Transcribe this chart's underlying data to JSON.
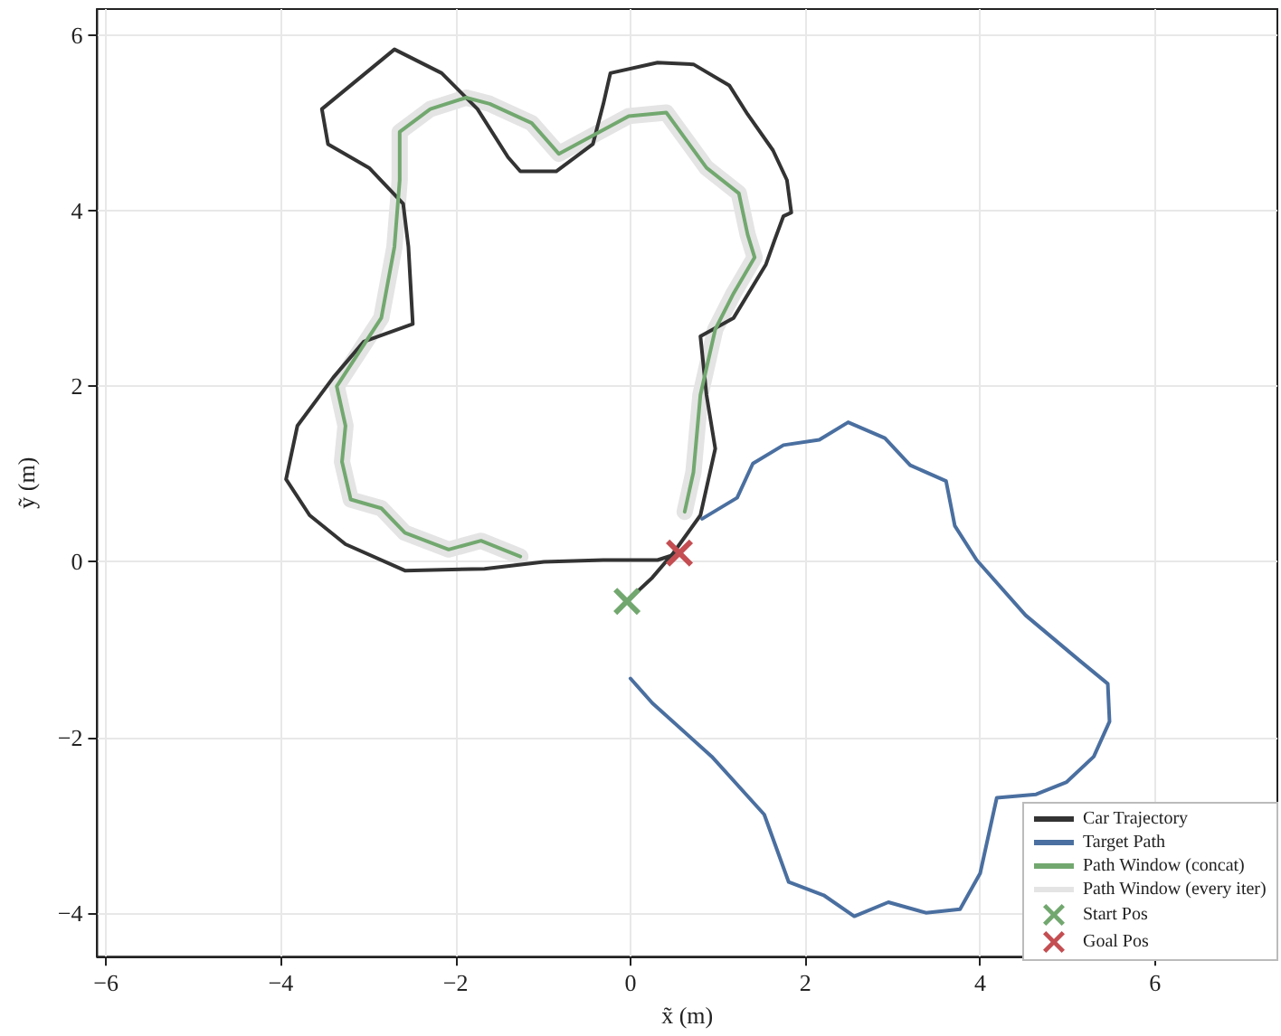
{
  "chart_data": {
    "type": "line",
    "xlabel": "x̃ (m)",
    "ylabel": "ỹ (m)",
    "xlim": [
      -6.1,
      7.4
    ],
    "xticks": [
      -6,
      -4,
      -2,
      0,
      2,
      4,
      6
    ],
    "ylim": [
      -4.5,
      6.3
    ],
    "yticks": [
      -4,
      -2,
      0,
      2,
      4,
      6
    ],
    "grid": true,
    "legend": "bottom right",
    "marker": "none",
    "line_style": "solid",
    "series": [
      {
        "name": "Car Trajectory",
        "color": "#333333",
        "x": [
          -0.04,
          0.25,
          0.49,
          0.8,
          0.97,
          0.87,
          0.8,
          1.18,
          1.55,
          1.65,
          1.75,
          1.84,
          1.79,
          1.63,
          1.34,
          1.13,
          0.72,
          0.31,
          -0.23,
          -0.31,
          -0.43,
          -0.85,
          -1.26,
          -1.4,
          -1.75,
          -2.16,
          -2.7,
          -3.53,
          -3.46,
          -2.99,
          -2.6,
          -2.54,
          -2.49,
          -3.05,
          -3.4,
          -3.81,
          -3.94,
          -3.67,
          -3.26,
          -2.58,
          -1.67,
          -0.99,
          -0.31,
          0.31,
          0.56
        ],
        "values": [
          -0.45,
          -0.18,
          0.1,
          0.53,
          1.29,
          1.9,
          2.57,
          2.78,
          3.39,
          3.67,
          3.94,
          3.98,
          4.35,
          4.69,
          5.1,
          5.43,
          5.67,
          5.69,
          5.57,
          5.22,
          4.76,
          4.45,
          4.45,
          4.61,
          5.16,
          5.57,
          5.84,
          5.16,
          4.76,
          4.49,
          4.08,
          3.59,
          2.71,
          2.51,
          2.1,
          1.55,
          0.94,
          0.53,
          0.2,
          -0.1,
          -0.08,
          0.0,
          0.02,
          0.02,
          0.1
        ]
      },
      {
        "name": "Target Path",
        "color": "#4a6fa0",
        "x": [
          0.82,
          1.22,
          1.4,
          1.75,
          2.16,
          2.49,
          2.91,
          3.2,
          3.61,
          3.71,
          3.96,
          4.52,
          5.13,
          5.46,
          5.48,
          5.3,
          4.99,
          4.64,
          4.19,
          4.0,
          3.77,
          3.38,
          2.95,
          2.56,
          2.21,
          1.81,
          1.53,
          0.93,
          0.25,
          0.0
        ],
        "values": [
          0.49,
          0.73,
          1.12,
          1.33,
          1.39,
          1.59,
          1.41,
          1.1,
          0.92,
          0.41,
          0.02,
          -0.61,
          -1.12,
          -1.39,
          -1.82,
          -2.22,
          -2.51,
          -2.65,
          -2.69,
          -3.55,
          -3.96,
          -4.0,
          -3.88,
          -4.04,
          -3.8,
          -3.65,
          -2.88,
          -2.22,
          -1.61,
          -1.33
        ]
      },
      {
        "name": "Path Window (concat)",
        "color": "#72a86f",
        "x": [
          0.62,
          0.72,
          0.8,
          0.97,
          1.18,
          1.42,
          1.34,
          1.24,
          0.87,
          0.41,
          -0.02,
          -0.82,
          -1.13,
          -1.61,
          -1.88,
          -2.29,
          -2.64,
          -2.64,
          -2.7,
          -2.85,
          -3.36,
          -3.26,
          -3.3,
          -3.2,
          -2.85,
          -2.58,
          -2.08,
          -1.71,
          -1.26
        ],
        "values": [
          0.57,
          1.02,
          1.9,
          2.65,
          3.06,
          3.47,
          3.73,
          4.2,
          4.49,
          5.12,
          5.08,
          4.65,
          5.0,
          5.22,
          5.29,
          5.16,
          4.9,
          4.35,
          3.59,
          2.78,
          2.0,
          1.55,
          1.14,
          0.71,
          0.61,
          0.33,
          0.14,
          0.24,
          0.06
        ]
      },
      {
        "name": "Path Window (every iter)",
        "color": "#e4e4e4",
        "x": [
          0.62,
          0.72,
          0.8,
          0.97,
          1.18,
          1.42,
          1.34,
          1.24,
          0.87,
          0.41,
          -0.02,
          -0.82,
          -1.13,
          -1.61,
          -1.88,
          -2.29,
          -2.64,
          -2.64,
          -2.7,
          -2.85,
          -3.36,
          -3.26,
          -3.3,
          -3.2,
          -2.85,
          -2.58,
          -2.08,
          -1.71,
          -1.26
        ],
        "values": [
          0.57,
          1.02,
          1.9,
          2.65,
          3.06,
          3.47,
          3.73,
          4.2,
          4.49,
          5.12,
          5.08,
          4.65,
          5.0,
          5.22,
          5.29,
          5.16,
          4.9,
          4.35,
          3.59,
          2.78,
          2.0,
          1.55,
          1.14,
          0.71,
          0.61,
          0.33,
          0.14,
          0.24,
          0.06
        ]
      },
      {
        "name": "Start Pos",
        "type": "scatter",
        "marker": "cross",
        "color": "#72a86f",
        "x": [
          -0.04
        ],
        "values": [
          -0.45
        ]
      },
      {
        "name": "Goal Pos",
        "type": "scatter",
        "marker": "cross",
        "color": "#c44e52",
        "x": [
          0.56
        ],
        "values": [
          0.1
        ]
      }
    ]
  }
}
